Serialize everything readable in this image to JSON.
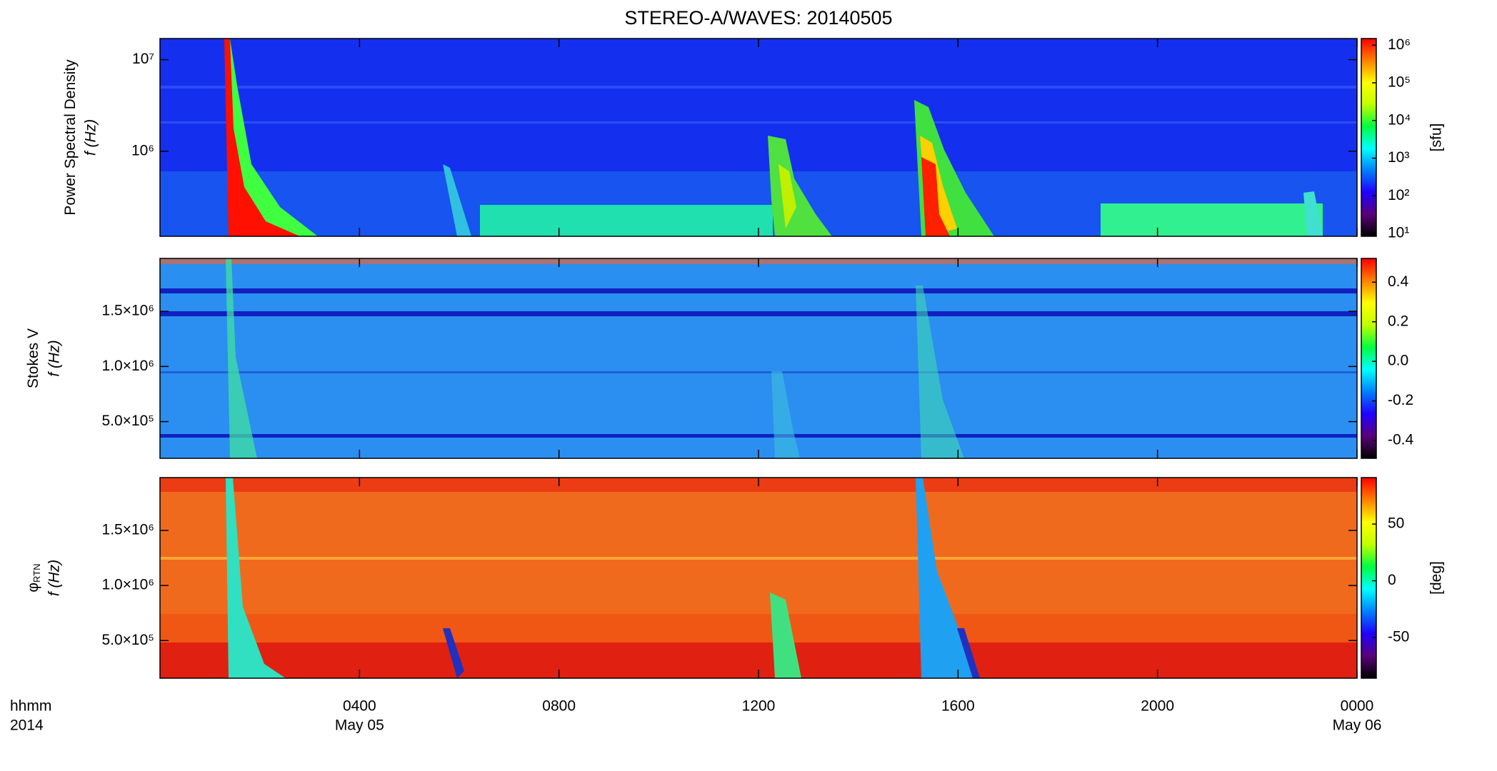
{
  "chart_data": {
    "type": "spectrogram",
    "title": "STEREO-A/WAVES: 20140505",
    "xlim": [
      0,
      24
    ],
    "xticks": [
      {
        "value": 4,
        "label": "0400"
      },
      {
        "value": 8,
        "label": "0800"
      },
      {
        "value": 12,
        "label": "1200"
      },
      {
        "value": 16,
        "label": "1600"
      },
      {
        "value": 20,
        "label": "2000"
      },
      {
        "value": 24,
        "label": "0000"
      }
    ],
    "date_labels": [
      {
        "value": 4,
        "label": "May 05"
      },
      {
        "value": 24,
        "label": "May 06"
      }
    ],
    "xlabel": "hhmm",
    "year_label": "2014",
    "panels": [
      {
        "ylabel": "Power Spectral Density",
        "ylabel_line2": "f (Hz)",
        "log_y": true,
        "ylim": [
          118000,
          17000000
        ],
        "yticks": [
          {
            "value": 1000000,
            "label": "10⁶"
          },
          {
            "value": 10000000,
            "label": "10⁷"
          }
        ],
        "color": "#1430ee",
        "colorbar": {
          "log": true,
          "clim": [
            8.4,
            1500000
          ],
          "label": "[sfu]",
          "ticks": [
            {
              "value": 10,
              "label": "10¹"
            },
            {
              "value": 100,
              "label": "10²"
            },
            {
              "value": 1000,
              "label": "10³"
            },
            {
              "value": 10000,
              "label": "10⁴"
            },
            {
              "value": 100000,
              "label": "10⁵"
            },
            {
              "value": 1000000,
              "label": "10⁶"
            }
          ],
          "colormap": [
            "#000000",
            "#5a007a",
            "#2000ff",
            "#0080ff",
            "#00ffff",
            "#00ff40",
            "#c0ff00",
            "#ffff00",
            "#ff8000",
            "#ff0000"
          ]
        }
      },
      {
        "ylabel": "Stokes V",
        "ylabel_line2": "f (Hz)",
        "log_y": false,
        "ylim": [
          167000,
          1980000
        ],
        "yticks": [
          {
            "value": 500000,
            "label": "5.0×10⁵"
          },
          {
            "value": 1000000,
            "label": "1.0×10⁶"
          },
          {
            "value": 1500000,
            "label": "1.5×10⁶"
          }
        ],
        "color": "#2a8ff0",
        "colorbar": {
          "log": false,
          "clim": [
            -0.49,
            0.52
          ],
          "ticks": [
            -0.4,
            -0.2,
            {
              "value": 0,
              "label": "0.0"
            },
            0.2,
            0.4
          ],
          "colormap": [
            "#000000",
            "#5a007a",
            "#2000ff",
            "#0080ff",
            "#00ffff",
            "#00ff40",
            "#c0ff00",
            "#ffff00",
            "#ff8000",
            "#ff0000"
          ]
        }
      },
      {
        "ylabel": "φ",
        "ylabel_sub": "RTN",
        "ylabel_line2": "f (Hz)",
        "log_y": false,
        "ylim": [
          158000,
          1980000
        ],
        "yticks": [
          {
            "value": 500000,
            "label": "5.0×10⁵"
          },
          {
            "value": 1000000,
            "label": "1.0×10⁶"
          },
          {
            "value": 1500000,
            "label": "1.5×10⁶"
          }
        ],
        "color": "#f06a1e",
        "colorbar": {
          "log": false,
          "clim": [
            -86,
            91
          ],
          "label": "[deg]",
          "ticks": [
            -50,
            0,
            50
          ],
          "colormap": [
            "#000000",
            "#5a007a",
            "#2000ff",
            "#0080ff",
            "#00ffff",
            "#00ff40",
            "#c0ff00",
            "#ffff00",
            "#ff8000",
            "#ff0000"
          ]
        }
      }
    ]
  }
}
